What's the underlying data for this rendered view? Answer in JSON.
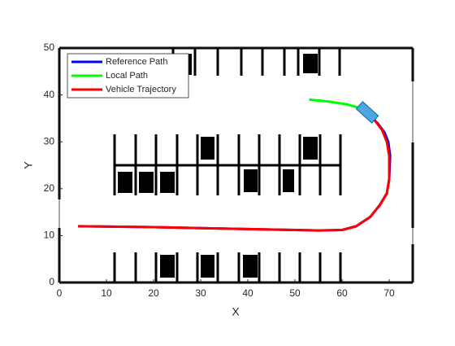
{
  "chart_data": {
    "type": "line",
    "x_label": "X",
    "y_label": "Y",
    "xlim": [
      0,
      75
    ],
    "ylim": [
      0,
      50
    ],
    "xticks": [
      0,
      10,
      20,
      30,
      40,
      50,
      60,
      70
    ],
    "yticks": [
      0,
      10,
      20,
      30,
      40,
      50
    ],
    "series": [
      {
        "name": "Reference Path",
        "color": "#0000ff",
        "x": [
          4,
          20,
          40,
          55,
          60,
          63,
          66,
          68,
          69.5,
          70,
          70.2,
          69.8,
          69,
          67.5,
          66
        ],
        "values": [
          12,
          11.8,
          11.4,
          11.1,
          11.2,
          12,
          14,
          16.5,
          19,
          22,
          27,
          30,
          32,
          34,
          35.5
        ]
      },
      {
        "name": "Local Path",
        "color": "#00ff00",
        "x": [
          53,
          57,
          61,
          63.5,
          65
        ],
        "values": [
          39,
          38.6,
          38,
          37.3,
          36.5
        ]
      },
      {
        "name": "Vehicle Trajectory",
        "color": "#ff0000",
        "x": [
          4,
          20,
          40,
          55,
          60,
          63,
          66,
          68,
          69.5,
          70,
          70,
          69.5,
          68.5,
          67
        ],
        "values": [
          12,
          11.8,
          11.4,
          11.1,
          11.2,
          12,
          14,
          16.5,
          19,
          22,
          27,
          30,
          32.5,
          34.5
        ]
      }
    ]
  }
}
